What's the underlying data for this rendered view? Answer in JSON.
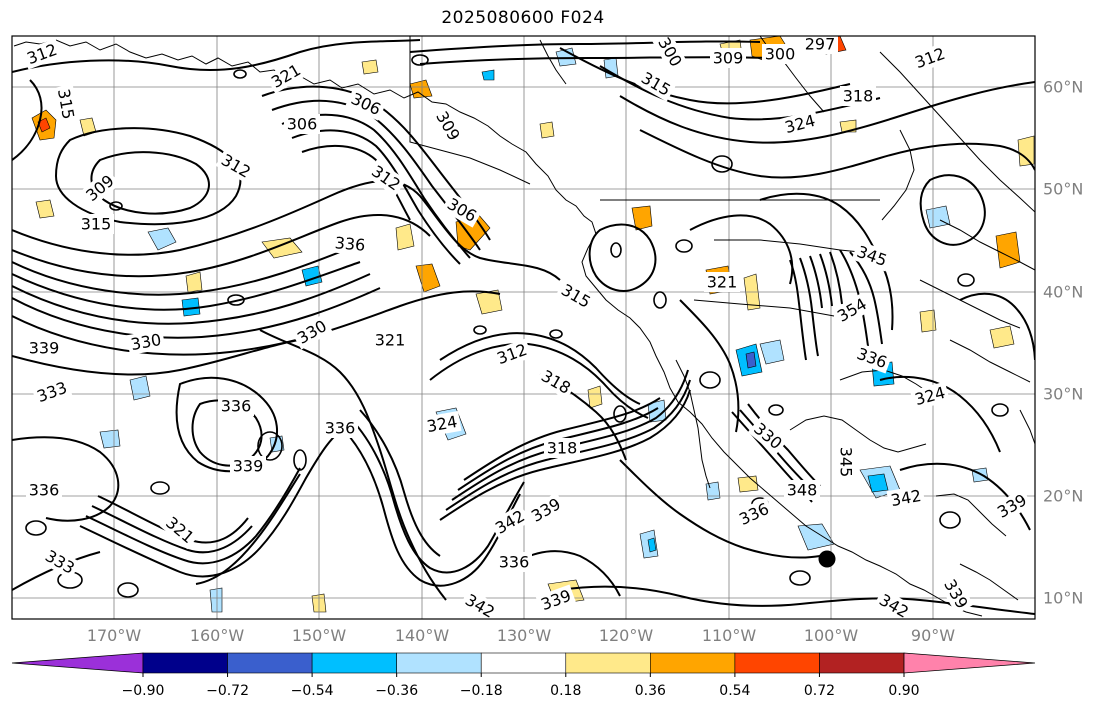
{
  "title": "2025080600 F024",
  "axes": {
    "lon_labels": [
      "170°W",
      "160°W",
      "150°W",
      "140°W",
      "130°W",
      "120°W",
      "110°W",
      "100°W",
      "90°W"
    ],
    "lat_labels": [
      "60°N",
      "50°N",
      "40°N",
      "30°N",
      "20°N",
      "10°N"
    ]
  },
  "contour_labels": [
    "312",
    "315",
    "309",
    "312",
    "306",
    "309",
    "306",
    "300",
    "309",
    "297",
    "300",
    "315",
    "318",
    "312",
    "321",
    "315",
    "324",
    "312",
    "336",
    "306",
    "339",
    "330",
    "330",
    "321",
    "315",
    "312",
    "318",
    "333",
    "336",
    "324",
    "336",
    "339",
    "321",
    "318",
    "342",
    "339",
    "336",
    "336",
    "339",
    "333",
    "342",
    "339",
    "330",
    "345",
    "348",
    "354",
    "336",
    "342",
    "339",
    "321",
    "324",
    "345",
    "342",
    "336"
  ],
  "colorbar": {
    "colors": [
      "#9b30d9",
      "#00008b",
      "#3a5fcd",
      "#00bfff",
      "#b0e2ff",
      "#ffffff",
      "#ffe98a",
      "#ffa500",
      "#ff4500",
      "#b22222",
      "#ff82ab"
    ],
    "ticks": [
      "−0.90",
      "−0.72",
      "−0.54",
      "−0.36",
      "−0.18",
      "0.18",
      "0.36",
      "0.54",
      "0.72",
      "0.90"
    ]
  },
  "marker": {
    "name": "marked-point"
  }
}
